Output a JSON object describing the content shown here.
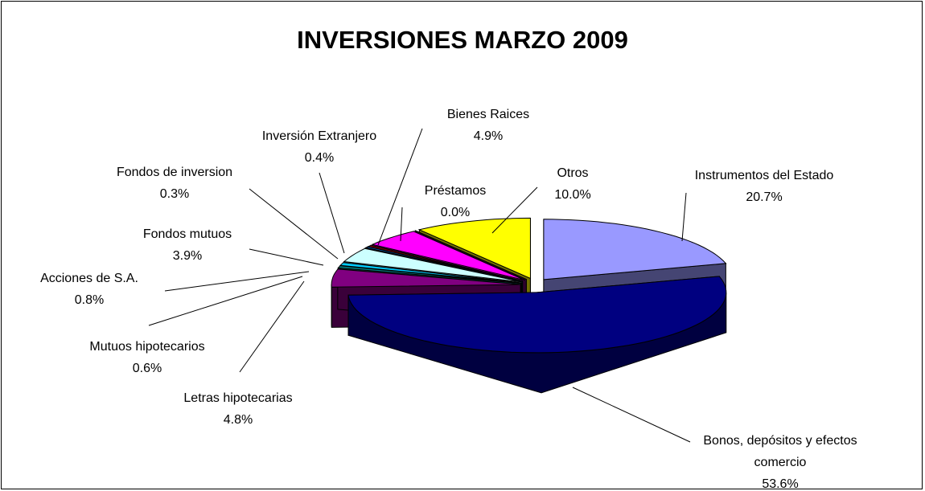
{
  "chart_data": {
    "type": "pie3d",
    "title": "INVERSIONES MARZO 2009",
    "categories": [
      "Instrumentos del Estado",
      "Bonos, depósitos y efectos comercio",
      "Letras hipotecarias",
      "Mutuos hipotecarios",
      "Acciones de S.A.",
      "Fondos mutuos",
      "Fondos de inversion",
      "Inversión Extranjero",
      "Bienes Raices",
      "Préstamos",
      "Otros"
    ],
    "values": [
      20.7,
      53.6,
      4.8,
      0.6,
      0.8,
      3.9,
      0.3,
      0.4,
      4.9,
      0.0,
      10.0
    ],
    "value_labels": [
      "20.7%",
      "53.6%",
      "4.8%",
      "0.6%",
      "0.8%",
      "3.9%",
      "0.3%",
      "0.4%",
      "4.9%",
      "0.0%",
      "10.0%"
    ],
    "colors": [
      "#9999ff",
      "#000080",
      "#800080",
      "#008080",
      "#00ccff",
      "#ccffff",
      "#0066cc",
      "#800000",
      "#ff00ff",
      "#800080",
      "#ffff00"
    ]
  }
}
